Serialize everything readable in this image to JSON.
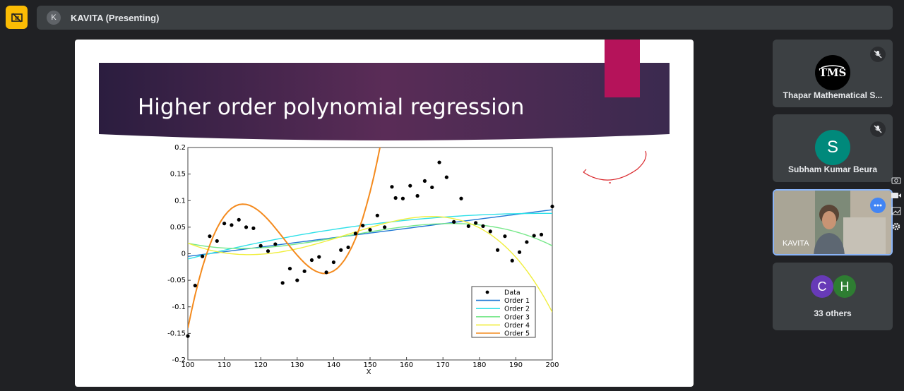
{
  "header": {
    "presenter_initial": "K",
    "presenter_label": "KAVITA (Presenting)"
  },
  "slide": {
    "title": "Higher order polynomial regression",
    "accent_color": "#b5135a",
    "banner_colors": [
      "#2b1d3f",
      "#5a2c57",
      "#3b2a4f"
    ]
  },
  "chart_data": {
    "type": "line",
    "xlabel": "X",
    "ylabel": "",
    "xlim": [
      100,
      200
    ],
    "ylim": [
      -0.2,
      0.2
    ],
    "x_ticks": [
      100,
      110,
      120,
      130,
      140,
      150,
      160,
      170,
      180,
      190,
      200
    ],
    "y_ticks": [
      -0.2,
      -0.15,
      -0.1,
      -0.05,
      0,
      0.05,
      0.1,
      0.15,
      0.2
    ],
    "y_tick_labels": [
      "-0.2",
      "-0.15",
      "-0.1",
      "-0.05",
      "0",
      "0.05",
      "0.1",
      "0.15",
      "0.2"
    ],
    "legend_position": "bottom-right",
    "data_points": {
      "name": "Data",
      "x": [
        100,
        102,
        104,
        106,
        108,
        110,
        112,
        114,
        116,
        118,
        120,
        122,
        124,
        126,
        128,
        130,
        132,
        134,
        136,
        138,
        140,
        142,
        144,
        146,
        148,
        150,
        152,
        154,
        156,
        157,
        159,
        161,
        163,
        165,
        167,
        169,
        171,
        173,
        175,
        177,
        179,
        181,
        183,
        185,
        187,
        189,
        191,
        193,
        195,
        197,
        200
      ],
      "y": [
        -0.155,
        -0.06,
        -0.005,
        0.033,
        0.024,
        0.057,
        0.054,
        0.064,
        0.05,
        0.048,
        0.015,
        0.005,
        0.018,
        -0.055,
        -0.028,
        -0.05,
        -0.033,
        -0.012,
        -0.006,
        -0.035,
        -0.016,
        0.007,
        0.012,
        0.038,
        0.053,
        0.045,
        0.072,
        0.05,
        0.126,
        0.105,
        0.104,
        0.128,
        0.109,
        0.137,
        0.125,
        0.172,
        0.144,
        0.06,
        0.104,
        0.052,
        0.058,
        0.052,
        0.042,
        0.007,
        0.033,
        -0.013,
        0.003,
        0.022,
        0.034,
        0.036,
        0.089
      ]
    },
    "series": [
      {
        "name": "Order 1",
        "color": "#1f78d4",
        "coeffs": [
          -0.005,
          0.000878
        ]
      },
      {
        "name": "Order 2",
        "color": "#2fe0e8",
        "coeffs": [
          -0.01,
          0.00175,
          -8.9e-06
        ]
      },
      {
        "name": "Order 3",
        "color": "#77e88a",
        "coeffs": [
          0.02,
          -0.0015,
          6.25e-05,
          -4.8e-07
        ]
      },
      {
        "name": "Order 4",
        "color": "#f0ee3c",
        "coeffs": [
          0.02,
          -0.0027,
          8.8e-05,
          -1.5e-07,
          -5.9e-09
        ]
      },
      {
        "name": "Order 5",
        "color": "#f48a1d",
        "coeffs": [
          -0.14,
          0.034,
          -0.00137,
          4.6e-06,
          3.6e-07,
          -2.7e-09
        ]
      }
    ],
    "data_marker_color": "#000000"
  },
  "participants": [
    {
      "name": "Thapar Mathematical S...",
      "avatar_text": "TMS",
      "avatar_color": "#000000",
      "muted": true
    },
    {
      "name": "Subham Kumar Beura",
      "avatar_text": "S",
      "avatar_color": "#00897b",
      "muted": true
    },
    {
      "name": "KAVITA",
      "avatar_text": "",
      "avatar_color": "#8a7b6a",
      "muted": false
    },
    {
      "name": "33 others",
      "avatar_text": "",
      "muted": false,
      "stack": [
        {
          "letter": "C",
          "color": "#673ab7"
        },
        {
          "letter": "H",
          "color": "#2e7d32"
        }
      ]
    }
  ]
}
